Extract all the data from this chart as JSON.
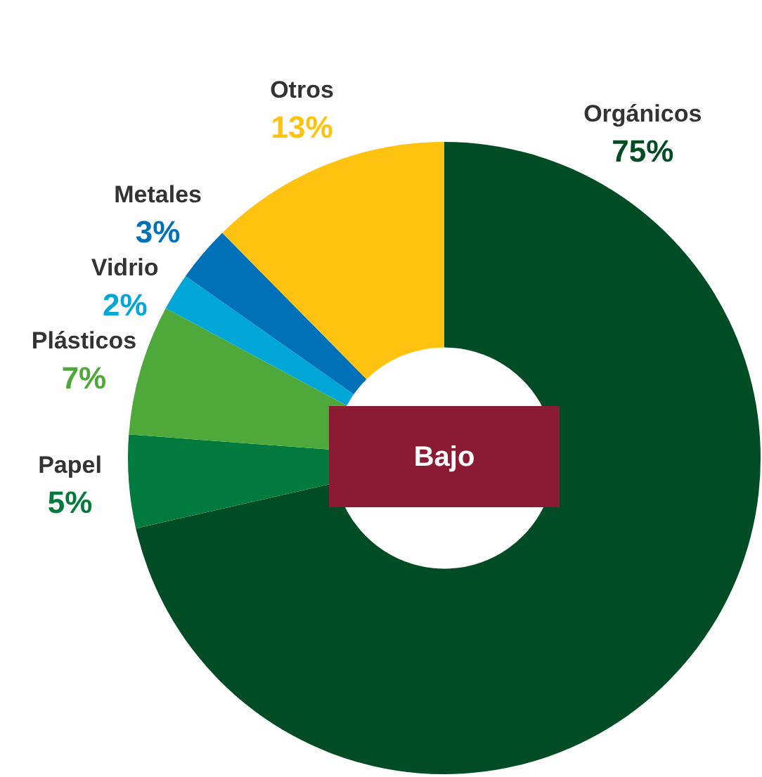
{
  "chart_data": {
    "type": "donut",
    "categories": [
      "Orgánicos",
      "Papel",
      "Plásticos",
      "Vidrio",
      "Metales",
      "Otros"
    ],
    "values": [
      75,
      5,
      7,
      2,
      3,
      13
    ],
    "value_labels": [
      "75%",
      "5%",
      "7%",
      "2%",
      "3%",
      "13%"
    ],
    "colors": [
      "#004d25",
      "#007a3d",
      "#4ea93a",
      "#00a6d6",
      "#0070b8",
      "#ffc20e"
    ],
    "annotations": [
      "Bajo"
    ],
    "legend": false
  }
}
